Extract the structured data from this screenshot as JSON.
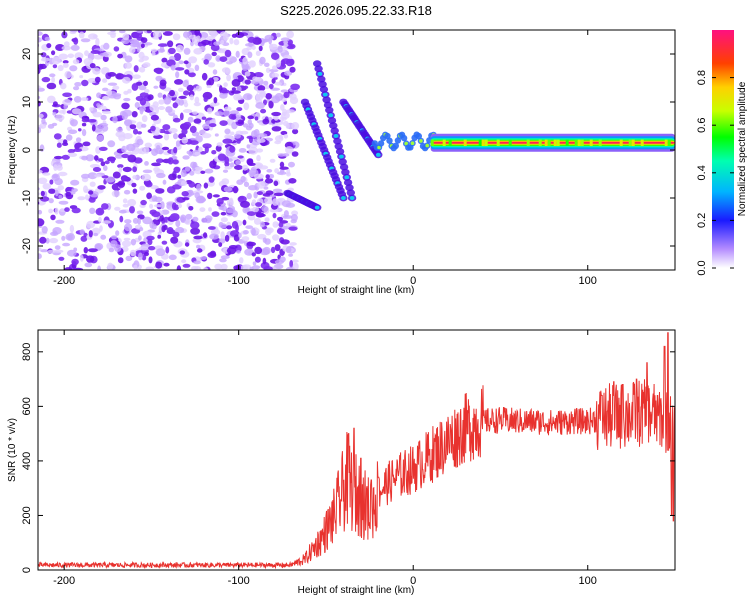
{
  "title": "S225.2026.095.22.33.R18",
  "chart_data": [
    {
      "type": "heatmap",
      "xlabel": "Height of straight line (km)",
      "ylabel": "Frequency (Hz)",
      "xlim": [
        -215,
        150
      ],
      "ylim": [
        -25,
        25
      ],
      "xticks": [
        -200,
        -100,
        0,
        100
      ],
      "xtick_labels": [
        "-200",
        "-100",
        "0",
        "100"
      ],
      "yticks": [
        -20,
        -10,
        0,
        10,
        20
      ],
      "ytick_labels": [
        "-20",
        "-10",
        "0",
        "10",
        "20"
      ],
      "colorbar": {
        "label": "Normalized spectral amplitude",
        "range": [
          0,
          1
        ],
        "ticks": [
          0,
          0.2,
          0.4,
          0.6,
          0.8
        ],
        "tick_labels": [
          "0.0",
          "0.2",
          "0.4",
          "0.6",
          "0.8"
        ]
      },
      "features": {
        "noise_region_x": [
          -215,
          -70
        ],
        "carrier_line": {
          "x": [
            10,
            150
          ],
          "frequency": 1.5,
          "peak_amplitude": 0.95
        },
        "curved_branches": [
          {
            "x": [
              -72,
              -55
            ],
            "freq": [
              -9,
              -12
            ]
          },
          {
            "x": [
              -62,
              -40
            ],
            "freq": [
              10,
              -10
            ]
          },
          {
            "x": [
              -55,
              -35
            ],
            "freq": [
              18,
              -10
            ]
          },
          {
            "x": [
              -40,
              -20
            ],
            "freq": [
              10,
              -1
            ]
          }
        ]
      }
    },
    {
      "type": "line",
      "xlabel": "Height of straight line (km)",
      "ylabel": "SNR (10 * v/v)",
      "xlim": [
        -215,
        150
      ],
      "ylim": [
        0,
        880
      ],
      "xticks": [
        -200,
        -100,
        0,
        100
      ],
      "xtick_labels": [
        "-200",
        "-100",
        "0",
        "100"
      ],
      "yticks": [
        0,
        200,
        400,
        600,
        800
      ],
      "ytick_labels": [
        "0",
        "200",
        "400",
        "600",
        "800"
      ],
      "color": "#e8322e",
      "profile": [
        [
          -215,
          18
        ],
        [
          -70,
          18
        ],
        [
          -62,
          40
        ],
        [
          -52,
          120
        ],
        [
          -45,
          200
        ],
        [
          -38,
          330
        ],
        [
          -33,
          280
        ],
        [
          -25,
          220
        ],
        [
          -18,
          300
        ],
        [
          -10,
          340
        ],
        [
          0,
          370
        ],
        [
          10,
          420
        ],
        [
          20,
          470
        ],
        [
          30,
          520
        ],
        [
          40,
          545
        ],
        [
          50,
          550
        ],
        [
          60,
          545
        ],
        [
          70,
          545
        ],
        [
          80,
          540
        ],
        [
          90,
          545
        ],
        [
          100,
          545
        ],
        [
          110,
          560
        ],
        [
          120,
          565
        ],
        [
          130,
          575
        ],
        [
          140,
          570
        ],
        [
          150,
          520
        ]
      ],
      "spikes": [
        [
          -37,
          500
        ],
        [
          -34,
          520
        ],
        [
          -30,
          410
        ],
        [
          -24,
          330
        ],
        [
          -20,
          340
        ],
        [
          108,
          640
        ],
        [
          115,
          690
        ],
        [
          120,
          680
        ],
        [
          128,
          700
        ],
        [
          134,
          760
        ],
        [
          140,
          640
        ],
        [
          144,
          820
        ],
        [
          146,
          870
        ],
        [
          148,
          200
        ],
        [
          149,
          180
        ]
      ]
    }
  ]
}
